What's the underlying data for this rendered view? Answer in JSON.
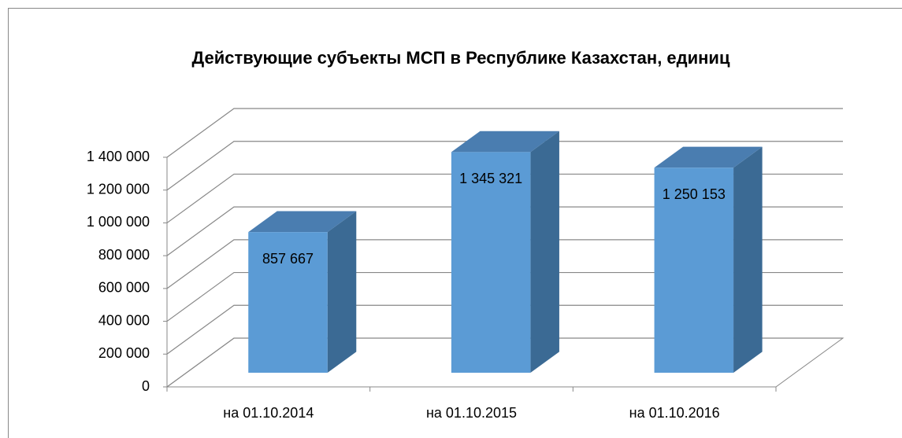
{
  "chart_data": {
    "type": "bar3d",
    "title": "Действующие субъекты МСП в Республике Казахстан, единиц",
    "categories": [
      "на 01.10.2014",
      "на 01.10.2015",
      "на 01.10.2016"
    ],
    "values": [
      857667,
      1345321,
      1250153
    ],
    "value_labels": [
      "857 667",
      "1 345 321",
      "1 250 153"
    ],
    "color": "#5b9bd5",
    "ylim": [
      0,
      1400000
    ],
    "yticks": [
      0,
      {
        "value": 200000,
        "label": "200 000"
      },
      {
        "value": 400000,
        "label": "400 000"
      },
      {
        "value": 600000,
        "label": "600 000"
      },
      {
        "value": 800000,
        "label": "800 000"
      },
      {
        "value": 1000000,
        "label": "1 000 000"
      },
      {
        "value": 1200000,
        "label": "1 200 000"
      },
      {
        "value": 1400000,
        "label": "1 400 000"
      }
    ],
    "grid": true
  }
}
